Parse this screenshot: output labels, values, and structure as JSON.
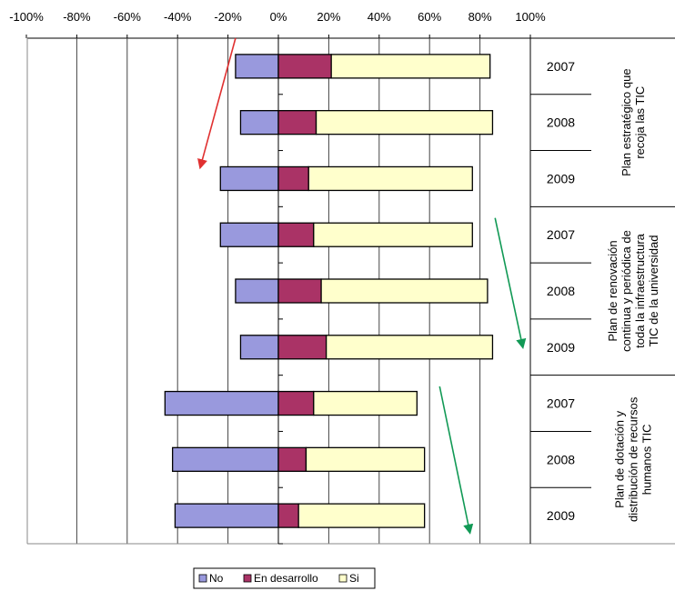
{
  "chart_data": {
    "type": "bar",
    "orientation": "horizontal",
    "stacked": true,
    "diverging": true,
    "xlim": [
      -100,
      100
    ],
    "x_ticks": [
      "-100%",
      "-80%",
      "-60%",
      "-40%",
      "-20%",
      "0%",
      "20%",
      "40%",
      "60%",
      "80%",
      "100%"
    ],
    "groups": [
      {
        "label_lines": [
          "Plan estratégico que",
          "recoja las TIC"
        ],
        "years": [
          "2007",
          "2008",
          "2009"
        ]
      },
      {
        "label_lines": [
          "Plan de renovación",
          "continua y periódica de",
          "toda la infraestructura",
          "TIC de la universidad"
        ],
        "years": [
          "2007",
          "2008",
          "2009"
        ]
      },
      {
        "label_lines": [
          "Plan de dotación y",
          "distribución de recursos",
          "humanos TIC"
        ],
        "years": [
          "2007",
          "2008",
          "2009"
        ]
      }
    ],
    "series": [
      {
        "name": "No",
        "color": "#9999dd",
        "values": [
          -17,
          -15,
          -23,
          -23,
          -17,
          -15,
          -45,
          -42,
          -41
        ]
      },
      {
        "name": "En desarrollo",
        "color": "#aa3366",
        "values": [
          21,
          15,
          12,
          14,
          17,
          19,
          14,
          11,
          8
        ]
      },
      {
        "name": "Si",
        "color": "#ffffcc",
        "values": [
          63,
          70,
          65,
          63,
          66,
          66,
          41,
          47,
          50
        ]
      }
    ],
    "legend_position": "bottom",
    "grid": true,
    "arrows": [
      {
        "color": "#e03030",
        "from": [
          -17,
          0.0
        ],
        "to": [
          -31,
          2.3
        ]
      },
      {
        "color": "#119955",
        "from": [
          86,
          3.2
        ],
        "to": [
          97,
          5.5
        ]
      },
      {
        "color": "#119955",
        "from": [
          64,
          6.2
        ],
        "to": [
          76,
          8.8
        ]
      }
    ]
  }
}
